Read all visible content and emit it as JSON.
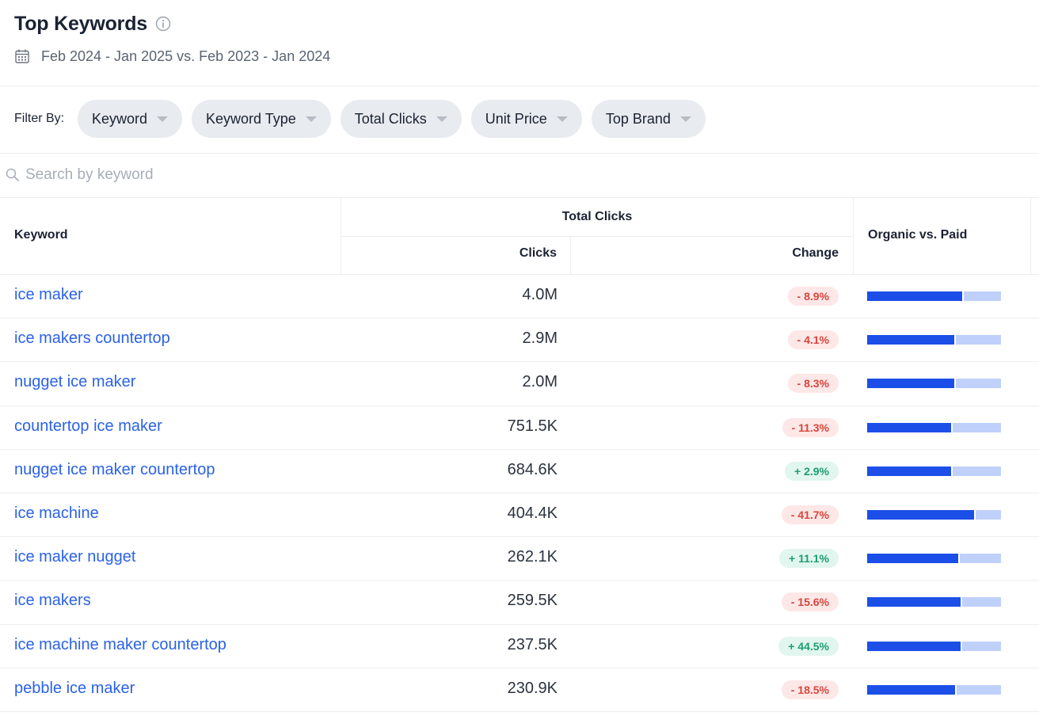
{
  "header": {
    "title": "Top Keywords",
    "date_range": "Feb 2024 - Jan 2025 vs. Feb 2023 - Jan 2024"
  },
  "filters": {
    "label": "Filter By:",
    "chips": [
      "Keyword",
      "Keyword Type",
      "Total Clicks",
      "Unit Price",
      "Top Brand"
    ]
  },
  "search": {
    "placeholder": "Search by keyword",
    "value": ""
  },
  "table": {
    "columns": {
      "keyword": "Keyword",
      "group": "Total Clicks",
      "clicks": "Clicks",
      "change": "Change",
      "organic_vs_paid": "Organic vs. Paid"
    },
    "rows": [
      {
        "keyword": "ice maker",
        "clicks": "4.0M",
        "change": "- 8.9%",
        "trend": "neg",
        "organic_share": 0.72
      },
      {
        "keyword": "ice makers countertop",
        "clicks": "2.9M",
        "change": "- 4.1%",
        "trend": "neg",
        "organic_share": 0.66
      },
      {
        "keyword": "nugget ice maker",
        "clicks": "2.0M",
        "change": "- 8.3%",
        "trend": "neg",
        "organic_share": 0.66
      },
      {
        "keyword": "countertop ice maker",
        "clicks": "751.5K",
        "change": "- 11.3%",
        "trend": "neg",
        "organic_share": 0.64
      },
      {
        "keyword": "nugget ice maker countertop",
        "clicks": "684.6K",
        "change": "+ 2.9%",
        "trend": "pos",
        "organic_share": 0.64
      },
      {
        "keyword": "ice machine",
        "clicks": "404.4K",
        "change": "- 41.7%",
        "trend": "neg",
        "organic_share": 0.81
      },
      {
        "keyword": "ice maker nugget",
        "clicks": "262.1K",
        "change": "+ 11.1%",
        "trend": "pos",
        "organic_share": 0.69
      },
      {
        "keyword": "ice makers",
        "clicks": "259.5K",
        "change": "- 15.6%",
        "trend": "neg",
        "organic_share": 0.71
      },
      {
        "keyword": "ice machine maker countertop",
        "clicks": "237.5K",
        "change": "+ 44.5%",
        "trend": "pos",
        "organic_share": 0.71
      },
      {
        "keyword": "pebble ice maker",
        "clicks": "230.9K",
        "change": "- 18.5%",
        "trend": "neg",
        "organic_share": 0.67
      }
    ]
  },
  "colors": {
    "link": "#2a62e8",
    "organic": "#1c4fe8",
    "paid": "#bfd0fb",
    "negative_text": "#d8463b",
    "negative_bg": "#fde7e7",
    "positive_text": "#1f9d72",
    "positive_bg": "#e1f6ee"
  },
  "icons": {
    "info": "info-circle-icon",
    "calendar": "calendar-icon",
    "search": "search-icon",
    "chip_caret": "caret-down-icon"
  }
}
